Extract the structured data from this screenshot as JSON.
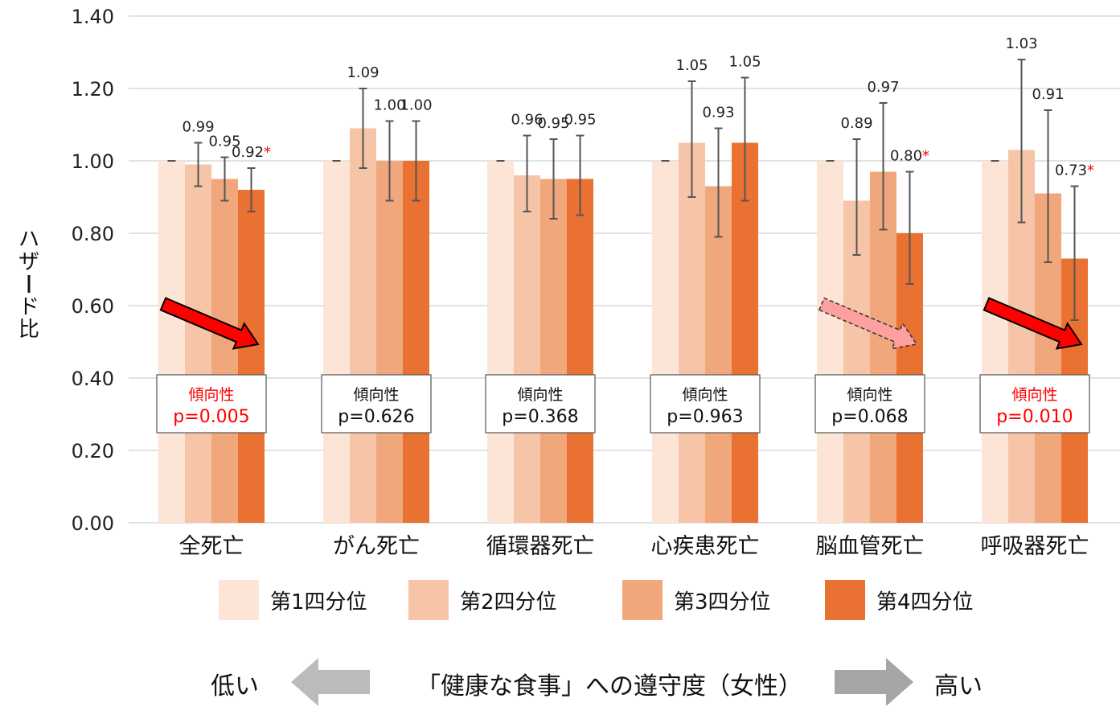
{
  "colors": {
    "q1": "#FCE4D6",
    "q2": "#F6C4A7",
    "q3": "#F0A77C",
    "q4": "#E97132",
    "grid": "#D9D9D9",
    "errbar": "#555555",
    "sig": "#FF0000",
    "arrow_sig": "#FF0000",
    "arrow_trend": "#FFA0A0",
    "bottom_arrow_left": "#BBBBBB",
    "bottom_arrow_right": "#A6A6A6"
  },
  "chart_data": {
    "type": "bar",
    "ylabel": "ハザード比",
    "ylim": [
      0,
      1.4
    ],
    "yticks": [
      "0.00",
      "0.20",
      "0.40",
      "0.60",
      "0.80",
      "1.00",
      "1.20",
      "1.40"
    ],
    "grid": true,
    "legend_position": "bottom",
    "categories": [
      "全死亡",
      "がん死亡",
      "循環器死亡",
      "心疾患死亡",
      "脳血管死亡",
      "呼吸器死亡"
    ],
    "series": [
      {
        "name": "第1四分位",
        "values": [
          1.0,
          1.0,
          1.0,
          1.0,
          1.0,
          1.0
        ],
        "labels": [
          "",
          "",
          "",
          "",
          "",
          ""
        ]
      },
      {
        "name": "第2四分位",
        "values": [
          0.99,
          1.09,
          0.96,
          1.05,
          0.89,
          1.03
        ],
        "labels": [
          "0.99",
          "1.09",
          "0.96",
          "1.05",
          "0.89",
          "1.03"
        ]
      },
      {
        "name": "第3四分位",
        "values": [
          0.95,
          1.0,
          0.95,
          0.93,
          0.97,
          0.91
        ],
        "labels": [
          "0.95",
          "1.00",
          "0.95",
          "0.93",
          "0.97",
          "0.91"
        ]
      },
      {
        "name": "第4四分位",
        "values": [
          0.92,
          1.0,
          0.95,
          1.05,
          0.8,
          0.73
        ],
        "labels": [
          "0.92",
          "1.00",
          "0.95",
          "1.05",
          "0.80",
          "0.73"
        ]
      }
    ],
    "error_bars": [
      [
        null,
        [
          0.93,
          1.05
        ],
        [
          0.89,
          1.01
        ],
        [
          0.86,
          0.98
        ]
      ],
      [
        null,
        [
          0.98,
          1.2
        ],
        [
          0.89,
          1.11
        ],
        [
          0.89,
          1.11
        ]
      ],
      [
        null,
        [
          0.86,
          1.07
        ],
        [
          0.84,
          1.06
        ],
        [
          0.85,
          1.07
        ]
      ],
      [
        null,
        [
          0.9,
          1.22
        ],
        [
          0.79,
          1.09
        ],
        [
          0.89,
          1.23
        ]
      ],
      [
        null,
        [
          0.74,
          1.06
        ],
        [
          0.81,
          1.16
        ],
        [
          0.66,
          0.97
        ]
      ],
      [
        null,
        [
          0.83,
          1.28
        ],
        [
          0.72,
          1.14
        ],
        [
          0.56,
          0.93
        ]
      ]
    ],
    "significant": [
      [
        false,
        false,
        false,
        true
      ],
      [
        false,
        false,
        false,
        false
      ],
      [
        false,
        false,
        false,
        false
      ],
      [
        false,
        false,
        false,
        false
      ],
      [
        false,
        false,
        false,
        true
      ],
      [
        false,
        false,
        false,
        true
      ]
    ],
    "significance_marker": "*",
    "trend_boxes": [
      {
        "title": "傾向性",
        "p": "p=0.005",
        "significant": true
      },
      {
        "title": "傾向性",
        "p": "p=0.626",
        "significant": false
      },
      {
        "title": "傾向性",
        "p": "p=0.368",
        "significant": false
      },
      {
        "title": "傾向性",
        "p": "p=0.963",
        "significant": false
      },
      {
        "title": "傾向性",
        "p": "p=0.068",
        "significant": false
      },
      {
        "title": "傾向性",
        "p": "p=0.010",
        "significant": true
      }
    ],
    "trend_arrows": [
      "solid",
      null,
      null,
      null,
      "dashed",
      "solid"
    ]
  },
  "legend": {
    "items": [
      "第1四分位",
      "第2四分位",
      "第3四分位",
      "第4四分位"
    ]
  },
  "bottom": {
    "low_label": "低い",
    "axis_caption": "「健康な食事」への遵守度（女性）",
    "high_label": "高い"
  }
}
